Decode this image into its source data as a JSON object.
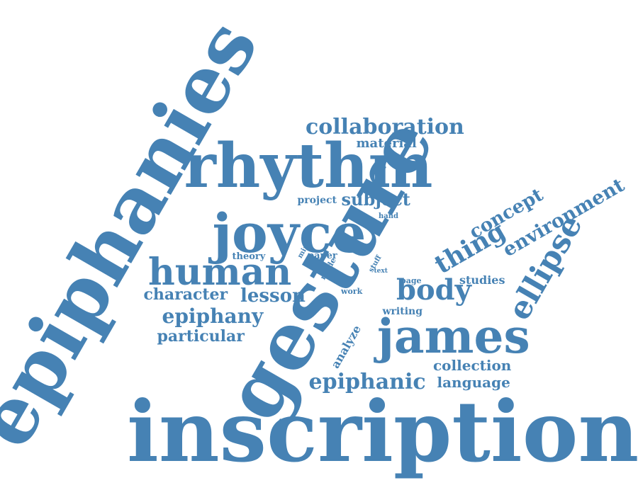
{
  "color": "#4682b4",
  "words": [
    {
      "text": "inscription",
      "weight": 1.0,
      "rotate": 0
    },
    {
      "text": "epiphanies",
      "weight": 0.98,
      "rotate": -60
    },
    {
      "text": "gesture",
      "weight": 0.93,
      "rotate": -60
    },
    {
      "text": "rhythm",
      "weight": 0.72,
      "rotate": 0
    },
    {
      "text": "joyce",
      "weight": 0.68,
      "rotate": 0
    },
    {
      "text": "james",
      "weight": 0.58,
      "rotate": 0
    },
    {
      "text": "human",
      "weight": 0.45,
      "rotate": 0
    },
    {
      "text": "ellipse",
      "weight": 0.37,
      "rotate": -60
    },
    {
      "text": "body",
      "weight": 0.32,
      "rotate": 0
    },
    {
      "text": "thing",
      "weight": 0.3,
      "rotate": -30
    },
    {
      "text": "collaboration",
      "weight": 0.26,
      "rotate": 0
    },
    {
      "text": "environment",
      "weight": 0.25,
      "rotate": -30
    },
    {
      "text": "epiphanic",
      "weight": 0.26,
      "rotate": 0
    },
    {
      "text": "epiphany",
      "weight": 0.24,
      "rotate": 0
    },
    {
      "text": "lesson",
      "weight": 0.24,
      "rotate": 0
    },
    {
      "text": "concept",
      "weight": 0.22,
      "rotate": -30
    },
    {
      "text": "subject",
      "weight": 0.2,
      "rotate": 0
    },
    {
      "text": "character",
      "weight": 0.19,
      "rotate": 0
    },
    {
      "text": "particular",
      "weight": 0.18,
      "rotate": 0
    },
    {
      "text": "collection",
      "weight": 0.17,
      "rotate": 0
    },
    {
      "text": "language",
      "weight": 0.17,
      "rotate": 0
    },
    {
      "text": "material",
      "weight": 0.15,
      "rotate": 0
    },
    {
      "text": "studies",
      "weight": 0.13,
      "rotate": 0
    },
    {
      "text": "analyze",
      "weight": 0.13,
      "rotate": -60
    },
    {
      "text": "writing",
      "weight": 0.11,
      "rotate": 0
    },
    {
      "text": "project",
      "weight": 0.11,
      "rotate": 0
    },
    {
      "text": "theory",
      "weight": 0.1,
      "rotate": 0
    },
    {
      "text": "paper",
      "weight": 0.1,
      "rotate": 0
    },
    {
      "text": "mode",
      "weight": 0.08,
      "rotate": -60
    },
    {
      "text": "mind",
      "weight": 0.07,
      "rotate": -60
    },
    {
      "text": "work",
      "weight": 0.08,
      "rotate": 0
    },
    {
      "text": "page",
      "weight": 0.08,
      "rotate": 0
    },
    {
      "text": "hand",
      "weight": 0.07,
      "rotate": 0
    },
    {
      "text": "stuff",
      "weight": 0.07,
      "rotate": -60
    },
    {
      "text": "text",
      "weight": 0.06,
      "rotate": 0
    }
  ]
}
